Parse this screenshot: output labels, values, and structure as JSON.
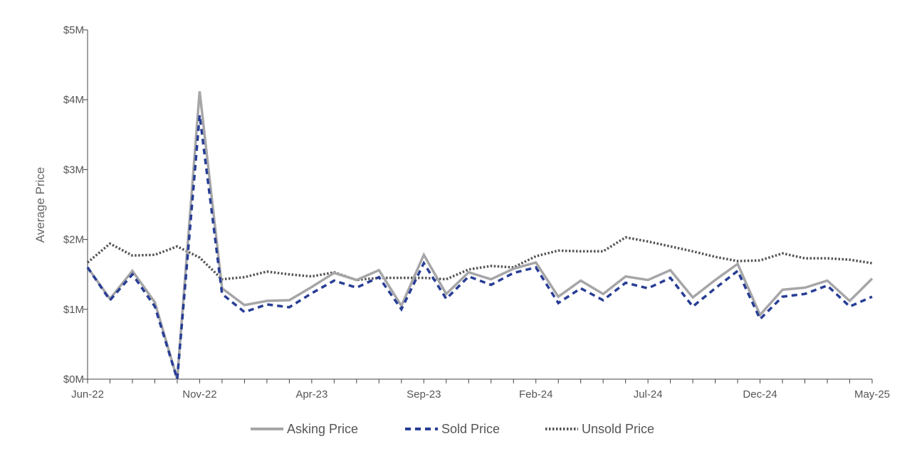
{
  "chart_data": {
    "type": "line",
    "title": "",
    "xlabel": "",
    "ylabel": "Average Price",
    "ylim": [
      0,
      5
    ],
    "y_unit": "$M",
    "y_ticks": [
      {
        "value": 0,
        "label": "$0M"
      },
      {
        "value": 1,
        "label": "$1M"
      },
      {
        "value": 2,
        "label": "$2M"
      },
      {
        "value": 3,
        "label": "$3M"
      },
      {
        "value": 4,
        "label": "$4M"
      },
      {
        "value": 5,
        "label": "$5M"
      }
    ],
    "x": [
      "Jun-22",
      "Jul-22",
      "Aug-22",
      "Sep-22",
      "Oct-22",
      "Nov-22",
      "Dec-22",
      "Jan-23",
      "Feb-23",
      "Mar-23",
      "Apr-23",
      "May-23",
      "Jun-23",
      "Jul-23",
      "Aug-23",
      "Sep-23",
      "Oct-23",
      "Nov-23",
      "Dec-23",
      "Jan-24",
      "Feb-24",
      "Mar-24",
      "Apr-24",
      "May-24",
      "Jun-24",
      "Jul-24",
      "Aug-24",
      "Sep-24",
      "Oct-24",
      "Nov-24",
      "Dec-24",
      "Jan-25",
      "Feb-25",
      "Mar-25",
      "Apr-25",
      "May-25"
    ],
    "x_tick_labels": [
      "Jun-22",
      "Nov-22",
      "Apr-23",
      "Sep-23",
      "Feb-24",
      "Jul-24",
      "Dec-24",
      "May-25"
    ],
    "grid": false,
    "legend_position": "bottom",
    "series": [
      {
        "name": "Asking Price",
        "color": "#a6a6a8",
        "style": "solid",
        "values": [
          1.6,
          1.15,
          1.55,
          1.1,
          0.0,
          4.12,
          1.3,
          1.06,
          1.12,
          1.13,
          1.32,
          1.52,
          1.42,
          1.56,
          1.05,
          1.78,
          1.22,
          1.53,
          1.43,
          1.58,
          1.67,
          1.18,
          1.41,
          1.22,
          1.47,
          1.42,
          1.56,
          1.17,
          1.42,
          1.65,
          0.92,
          1.28,
          1.31,
          1.41,
          1.12,
          1.44
        ]
      },
      {
        "name": "Sold Price",
        "color": "#283e95",
        "style": "dashed",
        "values": [
          1.6,
          1.13,
          1.5,
          1.04,
          0.0,
          3.78,
          1.22,
          0.96,
          1.07,
          1.03,
          1.23,
          1.41,
          1.31,
          1.46,
          1.0,
          1.66,
          1.15,
          1.47,
          1.35,
          1.52,
          1.6,
          1.09,
          1.3,
          1.13,
          1.38,
          1.3,
          1.45,
          1.04,
          1.3,
          1.55,
          0.86,
          1.18,
          1.22,
          1.34,
          1.04,
          1.18
        ]
      },
      {
        "name": "Unsold Price",
        "color": "#555555",
        "style": "dotted",
        "values": [
          1.67,
          1.94,
          1.77,
          1.78,
          1.9,
          1.74,
          1.43,
          1.46,
          1.54,
          1.5,
          1.47,
          1.53,
          1.42,
          1.45,
          1.45,
          1.45,
          1.43,
          1.57,
          1.62,
          1.6,
          1.76,
          1.84,
          1.83,
          1.83,
          2.03,
          1.97,
          1.9,
          1.83,
          1.75,
          1.69,
          1.7,
          1.8,
          1.73,
          1.73,
          1.71,
          1.66
        ]
      }
    ]
  }
}
